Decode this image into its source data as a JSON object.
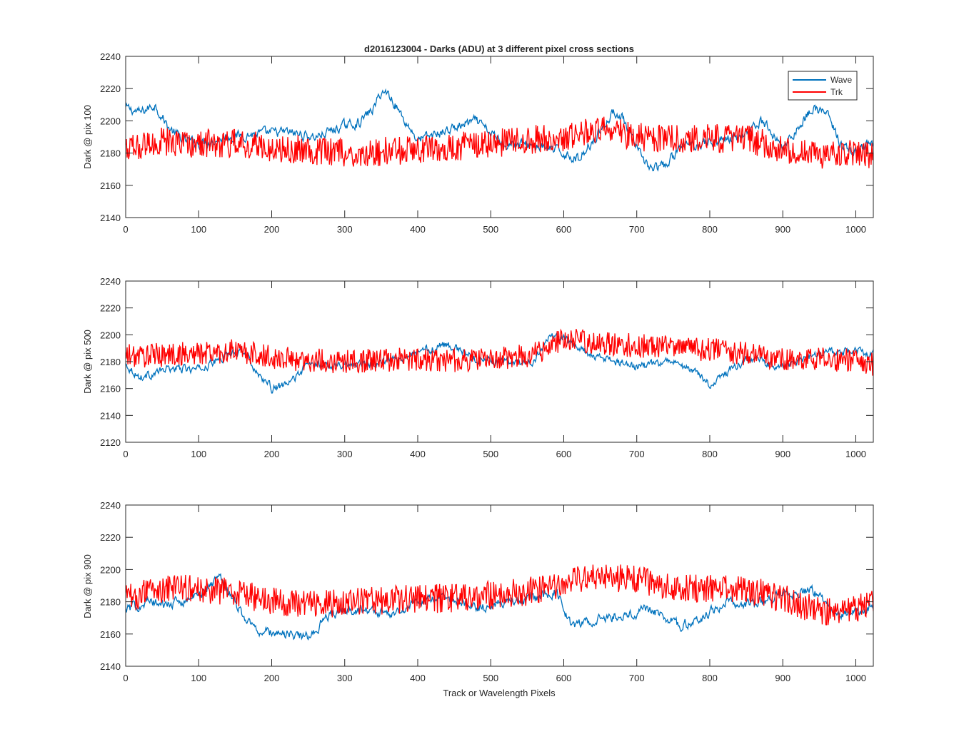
{
  "figure": {
    "background": "#ffffff",
    "axis_color": "#262626",
    "legend": {
      "placement": "top-right of first subplot",
      "entries": [
        "Wave",
        "Trk"
      ]
    }
  },
  "chart_data": [
    {
      "type": "line",
      "title": "d2016123004 - Darks (ADU) at 3 different pixel cross sections",
      "xlabel": "",
      "ylabel": "Dark @ pix 100",
      "xlim": [
        0,
        1024
      ],
      "ylim": [
        2140,
        2240
      ],
      "xticks": [
        0,
        100,
        200,
        300,
        400,
        500,
        600,
        700,
        800,
        900,
        1000
      ],
      "yticks": [
        2140,
        2160,
        2180,
        2200,
        2220,
        2240
      ],
      "grid": false,
      "legend_visible": true,
      "series": [
        {
          "name": "Wave",
          "color": "#0072BD",
          "x": [
            0,
            20,
            40,
            60,
            80,
            100,
            140,
            180,
            220,
            260,
            300,
            320,
            340,
            350,
            360,
            380,
            400,
            440,
            480,
            500,
            520,
            560,
            600,
            620,
            660,
            670,
            680,
            700,
            720,
            740,
            760,
            800,
            840,
            870,
            880,
            900,
            920,
            940,
            960,
            980,
            1000,
            1024
          ],
          "y": [
            2208,
            2205,
            2210,
            2195,
            2188,
            2186,
            2190,
            2192,
            2193,
            2190,
            2197,
            2199,
            2208,
            2218,
            2217,
            2202,
            2188,
            2194,
            2200,
            2192,
            2186,
            2185,
            2180,
            2176,
            2200,
            2206,
            2202,
            2182,
            2170,
            2172,
            2184,
            2187,
            2190,
            2200,
            2195,
            2184,
            2195,
            2208,
            2205,
            2185,
            2180,
            2186
          ]
        },
        {
          "name": "Trk",
          "color": "#FF0000",
          "x": [
            0,
            50,
            100,
            150,
            200,
            250,
            300,
            350,
            400,
            450,
            500,
            550,
            600,
            650,
            700,
            750,
            800,
            850,
            900,
            950,
            1000,
            1024
          ],
          "y": [
            2182,
            2187,
            2186,
            2186,
            2183,
            2182,
            2180,
            2181,
            2182,
            2184,
            2186,
            2188,
            2190,
            2196,
            2190,
            2189,
            2189,
            2189,
            2182,
            2178,
            2180,
            2178
          ]
        }
      ]
    },
    {
      "type": "line",
      "title": "",
      "xlabel": "",
      "ylabel": "Dark @ pix 500",
      "xlim": [
        0,
        1024
      ],
      "ylim": [
        2120,
        2240
      ],
      "xticks": [
        0,
        100,
        200,
        300,
        400,
        500,
        600,
        700,
        800,
        900,
        1000
      ],
      "yticks": [
        2120,
        2140,
        2160,
        2180,
        2200,
        2220,
        2240
      ],
      "grid": false,
      "legend_visible": false,
      "series": [
        {
          "name": "Wave",
          "color": "#0072BD",
          "x": [
            0,
            20,
            60,
            100,
            140,
            160,
            180,
            200,
            220,
            250,
            300,
            350,
            400,
            440,
            480,
            520,
            560,
            580,
            600,
            640,
            700,
            750,
            780,
            800,
            820,
            850,
            900,
            950,
            1000,
            1024
          ],
          "y": [
            2178,
            2168,
            2175,
            2174,
            2185,
            2190,
            2172,
            2160,
            2162,
            2178,
            2178,
            2180,
            2187,
            2193,
            2182,
            2179,
            2180,
            2200,
            2197,
            2184,
            2176,
            2180,
            2172,
            2163,
            2170,
            2182,
            2176,
            2186,
            2188,
            2186
          ]
        },
        {
          "name": "Trk",
          "color": "#FF0000",
          "x": [
            0,
            50,
            100,
            150,
            200,
            250,
            300,
            350,
            400,
            450,
            500,
            550,
            600,
            650,
            700,
            750,
            800,
            850,
            900,
            950,
            1000,
            1024
          ],
          "y": [
            2184,
            2185,
            2186,
            2188,
            2183,
            2181,
            2180,
            2181,
            2182,
            2181,
            2182,
            2184,
            2196,
            2194,
            2192,
            2191,
            2189,
            2186,
            2182,
            2182,
            2181,
            2178
          ]
        }
      ]
    },
    {
      "type": "line",
      "title": "",
      "xlabel": "Track or Wavelength Pixels",
      "ylabel": "Dark @ pix 900",
      "xlim": [
        0,
        1024
      ],
      "ylim": [
        2140,
        2240
      ],
      "xticks": [
        0,
        100,
        200,
        300,
        400,
        500,
        600,
        700,
        800,
        900,
        1000
      ],
      "yticks": [
        2140,
        2160,
        2180,
        2200,
        2220,
        2240
      ],
      "grid": false,
      "legend_visible": false,
      "series": [
        {
          "name": "Wave",
          "color": "#0072BD",
          "x": [
            0,
            30,
            60,
            100,
            130,
            160,
            180,
            220,
            250,
            280,
            320,
            360,
            400,
            440,
            480,
            520,
            560,
            590,
            610,
            640,
            680,
            720,
            760,
            790,
            820,
            860,
            900,
            940,
            980,
            1024
          ],
          "y": [
            2175,
            2180,
            2178,
            2184,
            2196,
            2172,
            2162,
            2160,
            2158,
            2172,
            2176,
            2172,
            2180,
            2182,
            2176,
            2180,
            2182,
            2186,
            2165,
            2168,
            2172,
            2175,
            2165,
            2170,
            2180,
            2178,
            2184,
            2187,
            2172,
            2176
          ]
        },
        {
          "name": "Trk",
          "color": "#FF0000",
          "x": [
            0,
            50,
            100,
            150,
            200,
            250,
            300,
            350,
            400,
            450,
            500,
            550,
            600,
            650,
            700,
            750,
            800,
            850,
            900,
            950,
            1000,
            1024
          ],
          "y": [
            2182,
            2188,
            2188,
            2186,
            2180,
            2178,
            2180,
            2181,
            2182,
            2182,
            2184,
            2186,
            2192,
            2196,
            2194,
            2190,
            2188,
            2188,
            2182,
            2174,
            2176,
            2178
          ]
        }
      ]
    }
  ]
}
